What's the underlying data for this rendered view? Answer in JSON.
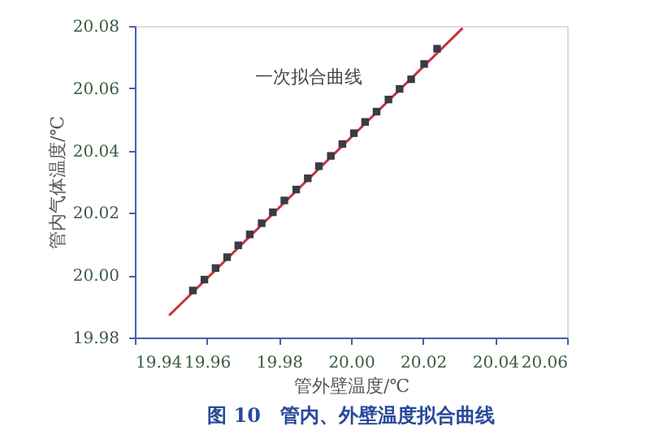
{
  "chart_data": {
    "type": "scatter",
    "title": "图 10　管内、外壁温度拟合曲线",
    "xlabel": "管外壁温度/℃",
    "ylabel": "管内气体温度/℃",
    "annotations": [
      "一次拟合曲线"
    ],
    "series": [
      {
        "type": "scatter",
        "color": "#3a3a48",
        "marker": "square",
        "x": [
          19.9561,
          19.9593,
          19.9624,
          19.9656,
          19.9687,
          19.9719,
          19.9752,
          19.9783,
          19.9815,
          19.9848,
          19.988,
          19.9911,
          19.9944,
          19.9976,
          20.0008,
          20.0039,
          20.0071,
          20.0104,
          20.0135,
          20.0167,
          20.0203,
          20.0239
        ],
        "values": [
          19.9951,
          19.9986,
          20.0023,
          20.0058,
          20.0096,
          20.0131,
          20.0167,
          20.0202,
          20.024,
          20.0275,
          20.0311,
          20.035,
          20.0383,
          20.0421,
          20.0456,
          20.0492,
          20.0525,
          20.0564,
          20.0598,
          20.0629,
          20.0678,
          20.0727
        ]
      },
      {
        "type": "line",
        "color": "#c8323c",
        "line_style": "solid",
        "x": [
          19.9495,
          20.031
        ],
        "values": [
          19.9871,
          20.0793
        ]
      }
    ],
    "xlim": [
      19.94,
      20.06
    ],
    "ylim": [
      19.98,
      20.08
    ],
    "xticks": [
      19.94,
      19.96,
      19.98,
      {
        "value": 20.0,
        "label": "20.00"
      },
      20.02,
      20.04,
      20.06
    ],
    "yticks": [
      19.98,
      {
        "value": 20.0,
        "label": "20.00"
      },
      20.02,
      20.04,
      20.06,
      20.08
    ],
    "grid": false,
    "legend": false
  }
}
